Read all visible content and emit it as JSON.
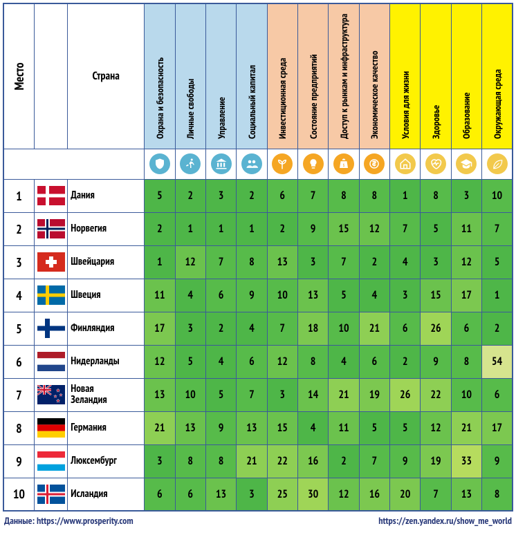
{
  "headers": {
    "rank": "Место",
    "country": "Страна"
  },
  "column_groups": [
    {
      "bg": "g1",
      "icon_bg": "ic-blue",
      "cols": [
        {
          "label": "Охрана и безопасность",
          "icon": "shield"
        },
        {
          "label": "Личные свободы",
          "icon": "run"
        },
        {
          "label": "Управление",
          "icon": "bank"
        },
        {
          "label": "Социальный капитал",
          "icon": "people"
        }
      ]
    },
    {
      "bg": "g2",
      "icon_bg": "ic-or",
      "cols": [
        {
          "label": "Инвестиционная среда",
          "icon": "plant"
        },
        {
          "label": "Состояние предприятий",
          "icon": "bulb"
        },
        {
          "label": "Доступ к рынкам и инфраструктура",
          "icon": "bag"
        },
        {
          "label": "Экономическое качество",
          "icon": "coin"
        }
      ]
    },
    {
      "bg": "g3",
      "icon_bg": "ic-yel",
      "cols": [
        {
          "label": "Условия для жизни",
          "icon": "home"
        },
        {
          "label": "Здоровье",
          "icon": "heart"
        },
        {
          "label": "Образование",
          "icon": "grad"
        },
        {
          "label": "Окружающая среда",
          "icon": "leaf"
        }
      ]
    }
  ],
  "cell_colors": {
    "scale": [
      {
        "max": 5,
        "color": "#4eb648"
      },
      {
        "max": 10,
        "color": "#57bb4a"
      },
      {
        "max": 15,
        "color": "#6bc24d"
      },
      {
        "max": 20,
        "color": "#7cc850"
      },
      {
        "max": 25,
        "color": "#8ecf54"
      },
      {
        "max": 30,
        "color": "#9fd557"
      },
      {
        "max": 40,
        "color": "#b6dc5e"
      },
      {
        "max": 9999,
        "color": "#d6e48e"
      }
    ]
  },
  "rows": [
    {
      "rank": 1,
      "flag": "dk",
      "name": "Дания",
      "vals": [
        5,
        2,
        3,
        2,
        6,
        7,
        8,
        8,
        1,
        8,
        3,
        10
      ]
    },
    {
      "rank": 2,
      "flag": "no",
      "name": "Норвегия",
      "vals": [
        2,
        1,
        1,
        1,
        2,
        9,
        15,
        12,
        7,
        5,
        11,
        7
      ]
    },
    {
      "rank": 3,
      "flag": "ch",
      "name": "Швейцария",
      "vals": [
        1,
        12,
        7,
        8,
        13,
        3,
        7,
        2,
        4,
        3,
        12,
        5
      ]
    },
    {
      "rank": 4,
      "flag": "se",
      "name": "Швеция",
      "vals": [
        11,
        4,
        6,
        9,
        10,
        13,
        5,
        4,
        3,
        15,
        17,
        1
      ]
    },
    {
      "rank": 5,
      "flag": "fi",
      "name": "Финляндия",
      "vals": [
        17,
        3,
        2,
        4,
        7,
        18,
        10,
        21,
        6,
        26,
        6,
        2
      ]
    },
    {
      "rank": 6,
      "flag": "nl",
      "name": "Нидерланды",
      "vals": [
        12,
        5,
        4,
        6,
        12,
        8,
        4,
        6,
        2,
        9,
        8,
        54
      ]
    },
    {
      "rank": 7,
      "flag": "nz",
      "name": "Новая Зеландия",
      "vals": [
        13,
        10,
        5,
        7,
        3,
        14,
        21,
        19,
        26,
        22,
        10,
        6
      ]
    },
    {
      "rank": 8,
      "flag": "de",
      "name": "Германия",
      "vals": [
        21,
        13,
        9,
        13,
        15,
        4,
        11,
        5,
        5,
        12,
        21,
        17
      ]
    },
    {
      "rank": 9,
      "flag": "lu",
      "name": "Люксембург",
      "vals": [
        3,
        8,
        8,
        21,
        22,
        16,
        2,
        7,
        9,
        19,
        33,
        9
      ]
    },
    {
      "rank": 10,
      "flag": "is",
      "name": "Исландия",
      "vals": [
        6,
        6,
        13,
        3,
        25,
        30,
        12,
        16,
        20,
        7,
        13,
        8
      ]
    }
  ],
  "footer": {
    "left_label": "Данные: ",
    "left_url": "https://www.prosperity.com",
    "right_url": "https://zen.yandex.ru/show_me_world"
  }
}
